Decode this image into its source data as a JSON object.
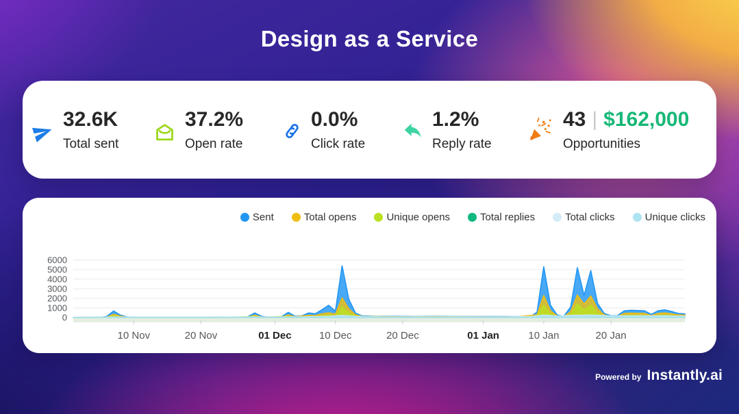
{
  "title": "Design as a Service",
  "stats": {
    "items": [
      {
        "icon": "paper-plane-icon",
        "icon_color": "#1d7de8",
        "value": "32.6K",
        "label": "Total sent"
      },
      {
        "icon": "open-envelope-icon",
        "icon_color": "#9bd717",
        "value": "37.2%",
        "label": "Open rate"
      },
      {
        "icon": "link-icon",
        "icon_color": "#1a73e8",
        "value": "0.0%",
        "label": "Click rate"
      },
      {
        "icon": "reply-arrow-icon",
        "icon_color": "#3ed3a3",
        "value": "1.2%",
        "label": "Reply rate"
      },
      {
        "icon": "party-popper-icon",
        "icon_color": "#f07d12",
        "value": "43",
        "divider": "|",
        "value_secondary": "$162,000",
        "value_secondary_color": "#17b877",
        "label": "Opportunities"
      }
    ]
  },
  "chart_data": {
    "type": "area",
    "x_axis": "dates from 01 Nov to 31 Jan (day offsets from 01 Nov)",
    "x_ticks": [
      {
        "day": 9,
        "label": "10 Nov",
        "bold": false
      },
      {
        "day": 19,
        "label": "20 Nov",
        "bold": false
      },
      {
        "day": 30,
        "label": "01 Dec",
        "bold": true
      },
      {
        "day": 39,
        "label": "10 Dec",
        "bold": false
      },
      {
        "day": 49,
        "label": "20 Dec",
        "bold": false
      },
      {
        "day": 61,
        "label": "01 Jan",
        "bold": true
      },
      {
        "day": 70,
        "label": "10 Jan",
        "bold": false
      },
      {
        "day": 80,
        "label": "20 Jan",
        "bold": false
      }
    ],
    "days_span": 91,
    "ylim": [
      0,
      6000
    ],
    "y_ticks": [
      0,
      1000,
      2000,
      3000,
      4000,
      5000,
      6000
    ],
    "grid": "horizontal",
    "grid_color": "#e8e8e8",
    "axis_label_color": "#55585c",
    "baseline_band_color": "#dcead8",
    "legend_position": "top-right",
    "series": [
      {
        "name": "Sent",
        "color": "#2196f3",
        "points": [
          [
            0,
            10
          ],
          [
            4,
            15
          ],
          [
            5,
            120
          ],
          [
            6,
            680
          ],
          [
            7,
            260
          ],
          [
            8,
            60
          ],
          [
            10,
            25
          ],
          [
            14,
            25
          ],
          [
            18,
            25
          ],
          [
            22,
            30
          ],
          [
            25,
            35
          ],
          [
            26,
            90
          ],
          [
            27,
            480
          ],
          [
            28,
            130
          ],
          [
            29,
            45
          ],
          [
            30,
            45
          ],
          [
            31,
            90
          ],
          [
            32,
            540
          ],
          [
            33,
            130
          ],
          [
            34,
            170
          ],
          [
            35,
            480
          ],
          [
            36,
            390
          ],
          [
            37,
            820
          ],
          [
            38,
            1280
          ],
          [
            39,
            650
          ],
          [
            40,
            5400
          ],
          [
            41,
            1900
          ],
          [
            42,
            450
          ],
          [
            43,
            170
          ],
          [
            45,
            120
          ],
          [
            48,
            120
          ],
          [
            51,
            110
          ],
          [
            54,
            120
          ],
          [
            57,
            110
          ],
          [
            60,
            110
          ],
          [
            63,
            100
          ],
          [
            66,
            95
          ],
          [
            68,
            90
          ],
          [
            69,
            550
          ],
          [
            70,
            5300
          ],
          [
            71,
            1300
          ],
          [
            72,
            260
          ],
          [
            73,
            140
          ],
          [
            74,
            1100
          ],
          [
            75,
            5200
          ],
          [
            76,
            2300
          ],
          [
            77,
            4900
          ],
          [
            78,
            1500
          ],
          [
            79,
            420
          ],
          [
            80,
            200
          ],
          [
            81,
            220
          ],
          [
            82,
            700
          ],
          [
            83,
            760
          ],
          [
            84,
            730
          ],
          [
            85,
            700
          ],
          [
            86,
            330
          ],
          [
            87,
            700
          ],
          [
            88,
            800
          ],
          [
            89,
            630
          ],
          [
            90,
            430
          ],
          [
            91,
            380
          ]
        ]
      },
      {
        "name": "Total opens",
        "color": "#efbe12",
        "points": [
          [
            0,
            5
          ],
          [
            5,
            60
          ],
          [
            6,
            330
          ],
          [
            7,
            150
          ],
          [
            8,
            35
          ],
          [
            14,
            20
          ],
          [
            22,
            25
          ],
          [
            26,
            55
          ],
          [
            27,
            230
          ],
          [
            28,
            75
          ],
          [
            30,
            50
          ],
          [
            31,
            60
          ],
          [
            32,
            260
          ],
          [
            33,
            85
          ],
          [
            35,
            230
          ],
          [
            36,
            200
          ],
          [
            37,
            380
          ],
          [
            38,
            490
          ],
          [
            39,
            340
          ],
          [
            40,
            2050
          ],
          [
            41,
            900
          ],
          [
            42,
            270
          ],
          [
            43,
            120
          ],
          [
            46,
            90
          ],
          [
            50,
            80
          ],
          [
            54,
            90
          ],
          [
            58,
            80
          ],
          [
            62,
            75
          ],
          [
            66,
            70
          ],
          [
            69,
            280
          ],
          [
            70,
            2300
          ],
          [
            71,
            700
          ],
          [
            72,
            160
          ],
          [
            73,
            100
          ],
          [
            74,
            600
          ],
          [
            75,
            2350
          ],
          [
            76,
            1400
          ],
          [
            77,
            2250
          ],
          [
            78,
            900
          ],
          [
            79,
            270
          ],
          [
            80,
            130
          ],
          [
            81,
            140
          ],
          [
            82,
            430
          ],
          [
            83,
            460
          ],
          [
            84,
            440
          ],
          [
            85,
            430
          ],
          [
            86,
            210
          ],
          [
            87,
            430
          ],
          [
            88,
            480
          ],
          [
            89,
            390
          ],
          [
            90,
            270
          ],
          [
            91,
            240
          ]
        ]
      },
      {
        "name": "Unique opens",
        "color": "#b9e122",
        "points": [
          [
            0,
            3
          ],
          [
            5,
            30
          ],
          [
            6,
            160
          ],
          [
            7,
            75
          ],
          [
            8,
            18
          ],
          [
            14,
            10
          ],
          [
            22,
            12
          ],
          [
            27,
            110
          ],
          [
            28,
            38
          ],
          [
            32,
            130
          ],
          [
            33,
            42
          ],
          [
            35,
            110
          ],
          [
            36,
            95
          ],
          [
            37,
            180
          ],
          [
            38,
            235
          ],
          [
            39,
            165
          ],
          [
            40,
            1120
          ],
          [
            41,
            480
          ],
          [
            42,
            135
          ],
          [
            43,
            60
          ],
          [
            46,
            45
          ],
          [
            50,
            40
          ],
          [
            54,
            45
          ],
          [
            58,
            40
          ],
          [
            62,
            38
          ],
          [
            66,
            35
          ],
          [
            69,
            150
          ],
          [
            70,
            1300
          ],
          [
            71,
            380
          ],
          [
            72,
            85
          ],
          [
            73,
            50
          ],
          [
            74,
            330
          ],
          [
            75,
            1400
          ],
          [
            76,
            800
          ],
          [
            77,
            1300
          ],
          [
            78,
            480
          ],
          [
            79,
            145
          ],
          [
            80,
            65
          ],
          [
            81,
            70
          ],
          [
            82,
            215
          ],
          [
            83,
            230
          ],
          [
            84,
            220
          ],
          [
            85,
            215
          ],
          [
            86,
            105
          ],
          [
            87,
            215
          ],
          [
            88,
            240
          ],
          [
            89,
            195
          ],
          [
            90,
            135
          ],
          [
            91,
            120
          ]
        ]
      },
      {
        "name": "Total replies",
        "color": "#10b981",
        "points": [
          [
            0,
            2
          ],
          [
            5,
            8
          ],
          [
            6,
            40
          ],
          [
            8,
            6
          ],
          [
            14,
            5
          ],
          [
            22,
            6
          ],
          [
            27,
            25
          ],
          [
            30,
            10
          ],
          [
            32,
            30
          ],
          [
            36,
            20
          ],
          [
            38,
            40
          ],
          [
            40,
            130
          ],
          [
            41,
            60
          ],
          [
            44,
            15
          ],
          [
            50,
            14
          ],
          [
            56,
            14
          ],
          [
            62,
            15
          ],
          [
            67,
            15
          ],
          [
            69,
            25
          ],
          [
            70,
            150
          ],
          [
            71,
            50
          ],
          [
            73,
            20
          ],
          [
            74,
            40
          ],
          [
            75,
            150
          ],
          [
            76,
            80
          ],
          [
            77,
            140
          ],
          [
            78,
            60
          ],
          [
            80,
            30
          ],
          [
            82,
            40
          ],
          [
            85,
            40
          ],
          [
            88,
            45
          ],
          [
            91,
            25
          ]
        ]
      },
      {
        "name": "Total clicks",
        "color": "#d4ecf7",
        "points": [
          [
            0,
            20
          ],
          [
            6,
            60
          ],
          [
            10,
            30
          ],
          [
            16,
            30
          ],
          [
            22,
            35
          ],
          [
            27,
            60
          ],
          [
            32,
            60
          ],
          [
            36,
            90
          ],
          [
            38,
            120
          ],
          [
            40,
            220
          ],
          [
            42,
            120
          ],
          [
            46,
            60
          ],
          [
            52,
            55
          ],
          [
            58,
            55
          ],
          [
            64,
            55
          ],
          [
            68,
            90
          ],
          [
            70,
            260
          ],
          [
            72,
            160
          ],
          [
            74,
            220
          ],
          [
            77,
            260
          ],
          [
            79,
            200
          ],
          [
            82,
            170
          ],
          [
            85,
            170
          ],
          [
            88,
            180
          ],
          [
            91,
            140
          ]
        ]
      },
      {
        "name": "Unique clicks",
        "color": "#aee3f2",
        "points": [
          [
            0,
            12
          ],
          [
            6,
            40
          ],
          [
            10,
            18
          ],
          [
            16,
            18
          ],
          [
            22,
            22
          ],
          [
            27,
            40
          ],
          [
            32,
            40
          ],
          [
            36,
            60
          ],
          [
            38,
            80
          ],
          [
            40,
            150
          ],
          [
            42,
            80
          ],
          [
            46,
            40
          ],
          [
            52,
            35
          ],
          [
            58,
            35
          ],
          [
            64,
            35
          ],
          [
            68,
            60
          ],
          [
            70,
            180
          ],
          [
            72,
            110
          ],
          [
            74,
            150
          ],
          [
            77,
            180
          ],
          [
            79,
            140
          ],
          [
            82,
            120
          ],
          [
            85,
            120
          ],
          [
            88,
            125
          ],
          [
            91,
            100
          ]
        ]
      }
    ]
  },
  "footer": {
    "powered_by": "Powered by",
    "brand": "Instantly.ai"
  }
}
